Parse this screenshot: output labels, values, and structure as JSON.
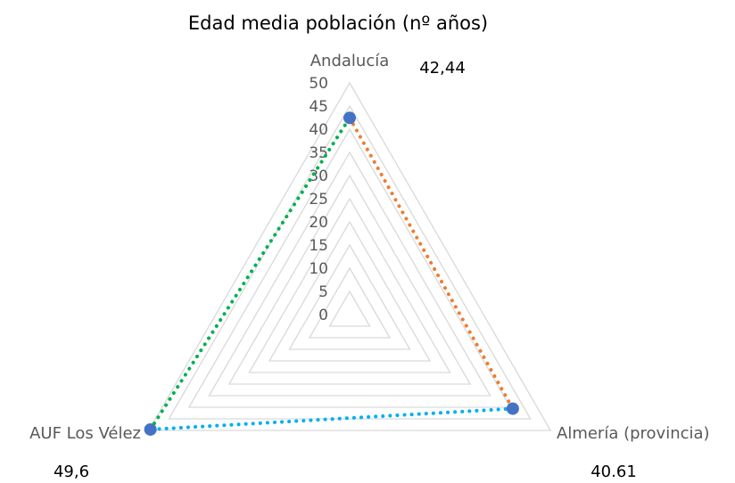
{
  "chart_data": {
    "type": "radar",
    "title": "Edad media población (nº años)",
    "categories": [
      "Andalucía",
      "Almería (provincia)",
      "AUF Los Vélez"
    ],
    "radial_ticks": [
      "0",
      "5",
      "10",
      "15",
      "20",
      "25",
      "30",
      "35",
      "40",
      "45",
      "50"
    ],
    "rlim": [
      0,
      50
    ],
    "values": [
      42.44,
      40.61,
      49.6
    ],
    "value_labels": [
      "42,44",
      "40.61",
      "49,6"
    ],
    "edges": [
      {
        "from": 0,
        "to": 1,
        "color": "#ED7D31",
        "style": "dotted"
      },
      {
        "from": 1,
        "to": 2,
        "color": "#00B0F0",
        "style": "dotted"
      },
      {
        "from": 2,
        "to": 0,
        "color": "#00B050",
        "style": "dotted"
      }
    ],
    "marker_color": "#4472C4",
    "grid_color": "#D9D9D9",
    "legend": "none"
  }
}
